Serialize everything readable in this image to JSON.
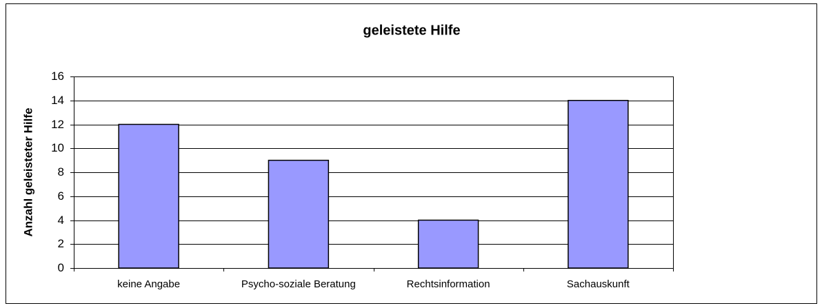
{
  "chart_data": {
    "type": "bar",
    "title": "geleistete Hilfe",
    "y_label": "Anzahl geleisteter Hilfe",
    "categories": [
      "keine Angabe",
      "Psycho-soziale Beratung",
      "Rechtsinformation",
      "Sachauskunft"
    ],
    "values": [
      12,
      9,
      4,
      14
    ],
    "color": "#9999ff",
    "ylim": [
      0,
      16
    ],
    "yticks": [
      0,
      2,
      4,
      6,
      8,
      10,
      12,
      14,
      16
    ],
    "grid": true
  }
}
